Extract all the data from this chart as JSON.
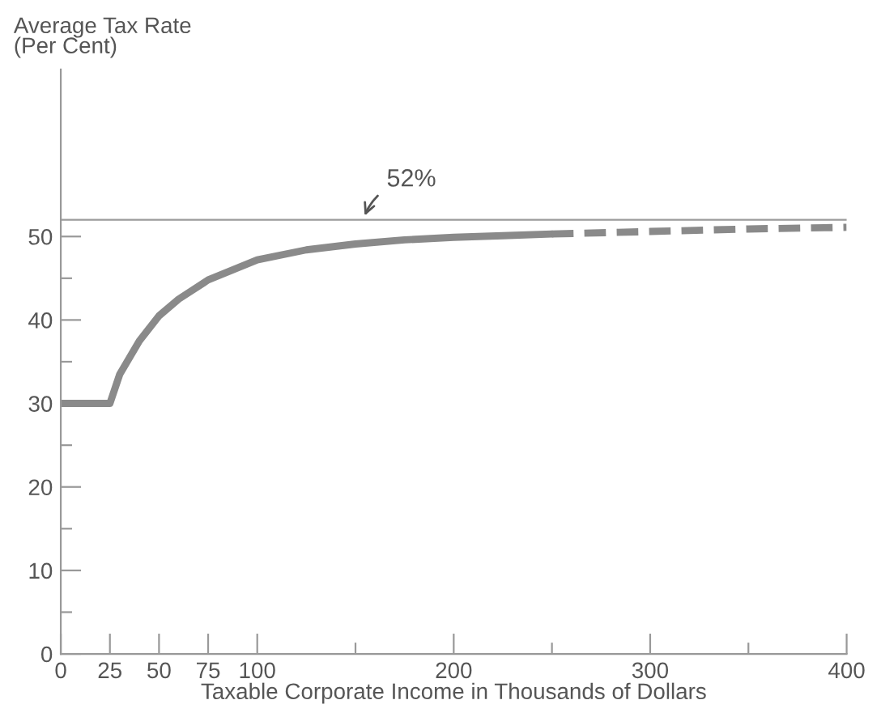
{
  "chart_data": {
    "type": "line",
    "xlabel": "Taxable Corporate Income in Thousands of Dollars",
    "ylabel": "Average Tax Rate\n(Per Cent)",
    "series": [
      {
        "color": "#8a8a8a",
        "line_style": "solid",
        "x": [
          0,
          25,
          30,
          40,
          50,
          60,
          75,
          100,
          125,
          150,
          175,
          200,
          225,
          250
        ],
        "values": [
          30,
          30,
          33.5,
          37.5,
          40.5,
          42.5,
          44.8,
          47.2,
          48.4,
          49.1,
          49.6,
          49.9,
          50.1,
          50.3
        ]
      },
      {
        "color": "#8a8a8a",
        "line_style": "dashed",
        "x": [
          250,
          300,
          350,
          400
        ],
        "values": [
          50.3,
          50.6,
          50.9,
          51.1
        ]
      }
    ],
    "xlim": [
      0,
      400
    ],
    "ylim": [
      0,
      70
    ],
    "xticks": [
      0,
      25,
      50,
      75,
      100,
      {
        "value": 150,
        "label": null
      },
      200,
      {
        "value": 250,
        "label": null
      },
      300,
      {
        "value": 350,
        "label": null
      },
      400
    ],
    "yticks": [
      0,
      {
        "value": 5,
        "label": null
      },
      10,
      {
        "value": 15,
        "label": null
      },
      20,
      {
        "value": 25,
        "label": null
      },
      30,
      {
        "value": 35,
        "label": null
      },
      40,
      {
        "value": 45,
        "label": null
      },
      50
    ],
    "ref_lines": [
      {
        "axis": "y",
        "value": 52,
        "label": "52%",
        "color": "#9a9a9a"
      }
    ],
    "grid": false,
    "legend": false
  }
}
